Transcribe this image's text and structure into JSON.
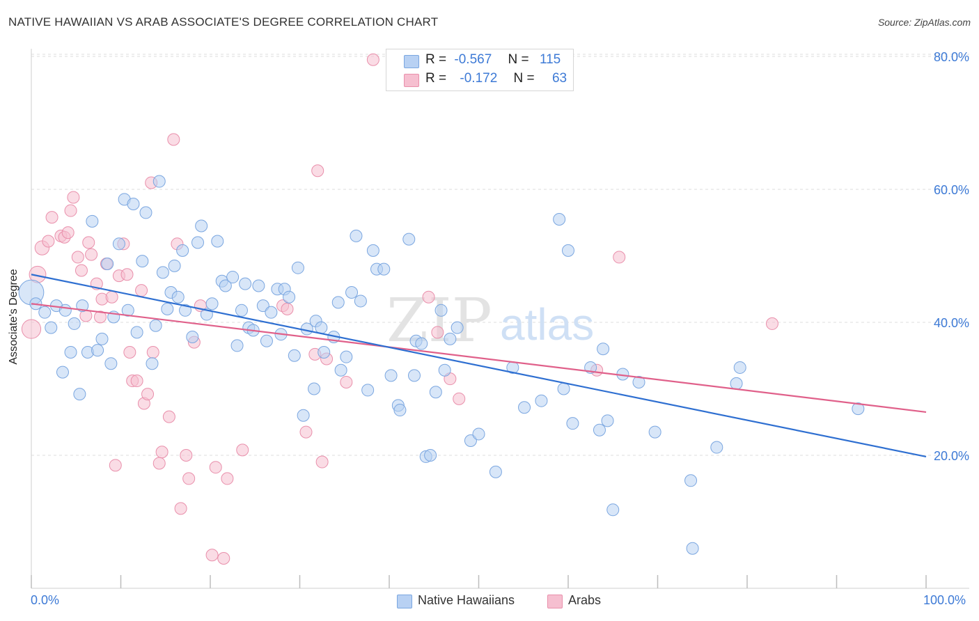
{
  "header": {
    "title": "NATIVE HAWAIIAN VS ARAB ASSOCIATE'S DEGREE CORRELATION CHART",
    "source": "Source: ZipAtlas.com"
  },
  "legend_top": {
    "rows": [
      {
        "r_label": "R =",
        "r_value": "-0.567",
        "n_label": "N =",
        "n_value": "115"
      },
      {
        "r_label": "R =",
        "r_value": "-0.172",
        "n_label": "N =",
        "n_value": "63"
      }
    ]
  },
  "legend_bottom": {
    "items": [
      "Native Hawaiians",
      "Arabs"
    ]
  },
  "watermark": {
    "part1": "ZIP",
    "part2": "atlas"
  },
  "colors": {
    "blue_fill": "#b8d1f3",
    "blue_stroke": "#7aa6e0",
    "blue_line": "#2e6fd1",
    "pink_fill": "#f6bfd0",
    "pink_stroke": "#e98fab",
    "pink_line": "#e0608a",
    "axis_text": "#3d7ad6"
  },
  "chart_data": {
    "type": "scatter",
    "title": "NATIVE HAWAIIAN VS ARAB ASSOCIATE'S DEGREE CORRELATION CHART",
    "xlabel": "",
    "ylabel": "Associate's Degree",
    "x_tick_labels": [
      "0.0%",
      "100.0%"
    ],
    "y_tick_labels": [
      "20.0%",
      "40.0%",
      "60.0%",
      "80.0%"
    ],
    "xlim": [
      0,
      100
    ],
    "ylim": [
      0,
      82
    ],
    "y_ticks": [
      20,
      40,
      60,
      80
    ],
    "grid": true,
    "legend_position": "top-center",
    "series": [
      {
        "name": "Native Hawaiians",
        "r": -0.567,
        "n": 115,
        "trend": {
          "x": [
            0,
            100
          ],
          "y": [
            47.2,
            19.8
          ]
        },
        "points": [
          [
            0,
            44.5,
            2.1
          ],
          [
            0.5,
            42.8,
            1
          ],
          [
            1.5,
            41.5,
            1
          ],
          [
            2.2,
            39.2,
            1
          ],
          [
            2.8,
            42.5,
            1
          ],
          [
            3.5,
            32.5,
            1
          ],
          [
            3.8,
            41.8,
            1
          ],
          [
            4.4,
            35.5,
            1
          ],
          [
            4.8,
            39.8,
            1
          ],
          [
            5.4,
            29.2,
            1
          ],
          [
            5.7,
            42.5,
            1
          ],
          [
            6.3,
            35.5,
            1
          ],
          [
            6.8,
            55.2,
            1
          ],
          [
            7.4,
            35.8,
            1
          ],
          [
            7.9,
            37.5,
            1
          ],
          [
            8.5,
            48.8,
            1
          ],
          [
            8.9,
            33.8,
            1
          ],
          [
            9.2,
            40.8,
            1
          ],
          [
            9.8,
            51.8,
            1
          ],
          [
            10.4,
            58.5,
            1
          ],
          [
            10.8,
            41.8,
            1
          ],
          [
            11.4,
            57.8,
            1
          ],
          [
            11.8,
            38.5,
            1
          ],
          [
            12.4,
            49.2,
            1
          ],
          [
            12.8,
            56.5,
            1
          ],
          [
            13.5,
            33.8,
            1
          ],
          [
            13.9,
            39.5,
            1
          ],
          [
            14.3,
            61.2,
            1
          ],
          [
            14.7,
            47.5,
            1
          ],
          [
            15.2,
            42.0,
            1
          ],
          [
            15.6,
            44.5,
            1
          ],
          [
            16.0,
            48.5,
            1
          ],
          [
            16.4,
            43.8,
            1
          ],
          [
            16.9,
            50.8,
            1
          ],
          [
            17.2,
            41.8,
            1
          ],
          [
            18.0,
            37.8,
            1
          ],
          [
            18.6,
            52.0,
            1
          ],
          [
            19.0,
            54.5,
            1
          ],
          [
            19.6,
            41.2,
            1
          ],
          [
            20.2,
            42.8,
            1
          ],
          [
            20.8,
            52.2,
            1
          ],
          [
            21.3,
            46.2,
            1
          ],
          [
            21.7,
            45.5,
            1
          ],
          [
            22.5,
            46.8,
            1
          ],
          [
            23.0,
            36.5,
            1
          ],
          [
            23.5,
            41.8,
            1
          ],
          [
            23.9,
            45.8,
            1
          ],
          [
            24.3,
            39.2,
            1
          ],
          [
            24.8,
            38.8,
            1
          ],
          [
            25.4,
            45.5,
            1
          ],
          [
            25.9,
            42.5,
            1
          ],
          [
            26.3,
            37.2,
            1
          ],
          [
            26.8,
            41.5,
            1
          ],
          [
            27.5,
            45.0,
            1
          ],
          [
            27.9,
            38.2,
            1
          ],
          [
            28.3,
            45.0,
            1
          ],
          [
            28.8,
            43.8,
            1
          ],
          [
            29.4,
            35.0,
            1
          ],
          [
            29.8,
            48.2,
            1
          ],
          [
            30.4,
            26.0,
            1
          ],
          [
            30.8,
            39.0,
            1
          ],
          [
            31.6,
            30.0,
            1
          ],
          [
            31.8,
            40.2,
            1
          ],
          [
            32.4,
            39.2,
            1
          ],
          [
            32.7,
            35.5,
            1
          ],
          [
            33.8,
            37.8,
            1
          ],
          [
            34.3,
            43.0,
            1
          ],
          [
            34.6,
            32.8,
            1
          ],
          [
            35.2,
            34.8,
            1
          ],
          [
            35.8,
            44.5,
            1
          ],
          [
            36.3,
            53.0,
            1
          ],
          [
            36.8,
            43.2,
            1
          ],
          [
            37.6,
            29.8,
            1
          ],
          [
            38.2,
            50.8,
            1
          ],
          [
            38.6,
            48.0,
            1
          ],
          [
            39.4,
            48.0,
            1
          ],
          [
            40.2,
            32.0,
            1
          ],
          [
            41.0,
            27.5,
            1
          ],
          [
            41.2,
            26.8,
            1
          ],
          [
            42.2,
            52.5,
            1
          ],
          [
            42.8,
            32.0,
            1
          ],
          [
            43.0,
            37.2,
            1
          ],
          [
            43.6,
            36.8,
            1
          ],
          [
            44.1,
            19.8,
            1
          ],
          [
            44.6,
            20.0,
            1
          ],
          [
            45.2,
            29.5,
            1
          ],
          [
            45.8,
            41.8,
            1
          ],
          [
            46.2,
            32.8,
            1
          ],
          [
            46.8,
            37.5,
            1
          ],
          [
            47.6,
            39.2,
            1
          ],
          [
            49.1,
            22.2,
            1
          ],
          [
            50.0,
            23.2,
            1
          ],
          [
            51.9,
            17.5,
            1
          ],
          [
            53.8,
            33.2,
            1
          ],
          [
            55.1,
            27.2,
            1
          ],
          [
            57.0,
            28.2,
            1
          ],
          [
            59.0,
            55.5,
            1
          ],
          [
            59.5,
            30.0,
            1
          ],
          [
            60.0,
            50.8,
            1
          ],
          [
            60.5,
            24.8,
            1
          ],
          [
            62.5,
            33.2,
            1
          ],
          [
            63.5,
            23.8,
            1
          ],
          [
            63.9,
            36.0,
            1
          ],
          [
            64.4,
            25.2,
            1
          ],
          [
            65.0,
            11.8,
            1
          ],
          [
            66.1,
            32.2,
            1
          ],
          [
            67.9,
            31.0,
            1
          ],
          [
            69.7,
            23.5,
            1
          ],
          [
            73.7,
            16.2,
            1
          ],
          [
            73.9,
            6.0,
            1
          ],
          [
            76.6,
            21.2,
            1
          ],
          [
            78.8,
            30.8,
            1
          ],
          [
            79.2,
            33.2,
            1
          ],
          [
            92.4,
            27.0,
            1
          ]
        ]
      },
      {
        "name": "Arabs",
        "r": -0.172,
        "n": 63,
        "trend": {
          "x": [
            0,
            100
          ],
          "y": [
            42.8,
            26.5
          ]
        },
        "points": [
          [
            0,
            39.0,
            1.6
          ],
          [
            0.7,
            47.2,
            1.4
          ],
          [
            1.2,
            51.2,
            1.2
          ],
          [
            1.9,
            52.2,
            1
          ],
          [
            2.3,
            55.8,
            1
          ],
          [
            3.3,
            53.0,
            1
          ],
          [
            3.7,
            52.8,
            1
          ],
          [
            4.1,
            53.5,
            1
          ],
          [
            4.4,
            56.8,
            1
          ],
          [
            4.7,
            58.8,
            1
          ],
          [
            5.2,
            49.8,
            1
          ],
          [
            5.6,
            47.8,
            1
          ],
          [
            6.1,
            41.0,
            1
          ],
          [
            6.4,
            52.0,
            1
          ],
          [
            6.7,
            50.2,
            1
          ],
          [
            7.3,
            45.8,
            1
          ],
          [
            7.7,
            40.8,
            1
          ],
          [
            7.9,
            43.5,
            1
          ],
          [
            8.4,
            48.8,
            1
          ],
          [
            9.0,
            43.8,
            1
          ],
          [
            9.4,
            18.5,
            1
          ],
          [
            9.8,
            47.0,
            1
          ],
          [
            10.3,
            51.8,
            1
          ],
          [
            10.7,
            47.2,
            1
          ],
          [
            11.0,
            35.5,
            1
          ],
          [
            11.3,
            31.2,
            1
          ],
          [
            11.8,
            31.2,
            1
          ],
          [
            12.3,
            44.8,
            1
          ],
          [
            12.6,
            27.8,
            1
          ],
          [
            13.0,
            29.2,
            1
          ],
          [
            13.4,
            61.0,
            1
          ],
          [
            13.6,
            35.5,
            1
          ],
          [
            14.3,
            18.8,
            1
          ],
          [
            14.6,
            20.5,
            1
          ],
          [
            15.4,
            25.8,
            1
          ],
          [
            15.9,
            67.5,
            1
          ],
          [
            16.3,
            51.8,
            1
          ],
          [
            16.7,
            12.0,
            1
          ],
          [
            17.3,
            20.0,
            1
          ],
          [
            17.6,
            16.5,
            1
          ],
          [
            18.2,
            37.0,
            1
          ],
          [
            18.9,
            42.5,
            1
          ],
          [
            20.2,
            5.0,
            1
          ],
          [
            20.6,
            18.2,
            1
          ],
          [
            21.5,
            4.5,
            1
          ],
          [
            21.9,
            16.5,
            1
          ],
          [
            23.6,
            20.8,
            1
          ],
          [
            28.1,
            42.5,
            1
          ],
          [
            28.6,
            42.0,
            1
          ],
          [
            30.7,
            23.5,
            1
          ],
          [
            31.7,
            35.2,
            1
          ],
          [
            32.0,
            62.8,
            1
          ],
          [
            32.5,
            19.0,
            1
          ],
          [
            33.0,
            34.5,
            1
          ],
          [
            35.2,
            31.0,
            1
          ],
          [
            38.2,
            79.5,
            1
          ],
          [
            44.4,
            43.8,
            1
          ],
          [
            45.4,
            38.5,
            1
          ],
          [
            46.8,
            31.5,
            1
          ],
          [
            47.8,
            28.5,
            1
          ],
          [
            63.2,
            32.8,
            1
          ],
          [
            65.7,
            49.8,
            1
          ],
          [
            82.8,
            39.8,
            1
          ]
        ]
      }
    ]
  }
}
